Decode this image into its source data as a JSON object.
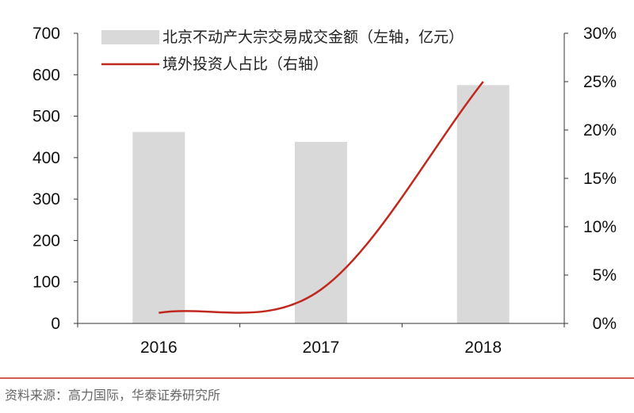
{
  "chart_data": {
    "type": "bar",
    "categories": [
      "2016",
      "2017",
      "2018"
    ],
    "series": [
      {
        "name": "北京不动产大宗交易成交金额（左轴，亿元）",
        "type": "bar",
        "axis": "left",
        "values": [
          462,
          438,
          575
        ],
        "color": "#d9d9d9"
      },
      {
        "name": "境外投资人占比（右轴）",
        "type": "line",
        "axis": "right",
        "values": [
          1.1,
          3.5,
          25.0
        ],
        "color": "#c0281e"
      }
    ],
    "y_left": {
      "min": 0,
      "max": 700,
      "ticks": [
        "0",
        "100",
        "200",
        "300",
        "400",
        "500",
        "600",
        "700"
      ]
    },
    "y_right": {
      "min": 0,
      "max": 30,
      "ticks": [
        "0%",
        "5%",
        "10%",
        "15%",
        "20%",
        "25%",
        "30%"
      ]
    },
    "legend_position": "top",
    "grid": false
  },
  "source_text": "资料来源：高力国际，华泰证券研究所"
}
